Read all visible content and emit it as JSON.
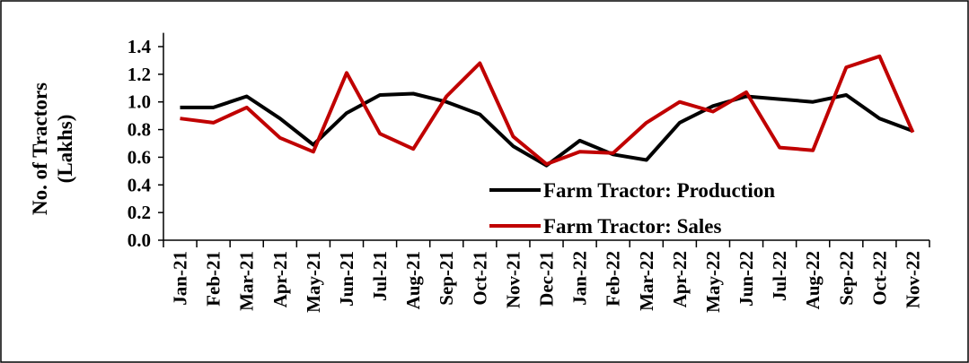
{
  "chart_data": {
    "type": "line",
    "y_label": [
      "No. of Tractors",
      "(Lakhs)"
    ],
    "categories": [
      "Jan-21",
      "Feb-21",
      "Mar-21",
      "Apr-21",
      "May-21",
      "Jun-21",
      "Jul-21",
      "Aug-21",
      "Sep-21",
      "Oct-21",
      "Nov-21",
      "Dec-21",
      "Jan-22",
      "Feb-22",
      "Mar-22",
      "Apr-22",
      "May-22",
      "Jun-22",
      "Jul-22",
      "Aug-22",
      "Sep-22",
      "Oct-22",
      "Nov-22"
    ],
    "series": [
      {
        "name": "Farm Tractor: Production",
        "color": "#000000",
        "values": [
          0.96,
          0.96,
          1.04,
          0.88,
          0.69,
          0.92,
          1.05,
          1.06,
          1.0,
          0.91,
          0.68,
          0.54,
          0.72,
          0.62,
          0.58,
          0.85,
          0.97,
          1.04,
          1.02,
          1.0,
          1.05,
          0.88,
          0.79
        ]
      },
      {
        "name": "Farm Tractor: Sales",
        "color": "#c00000",
        "values": [
          0.88,
          0.85,
          0.96,
          0.74,
          0.64,
          1.21,
          0.77,
          0.66,
          1.04,
          1.28,
          0.75,
          0.55,
          0.64,
          0.63,
          0.85,
          1.0,
          0.93,
          1.07,
          0.67,
          0.65,
          1.25,
          1.33,
          0.78
        ]
      }
    ],
    "ylim": [
      0,
      1.5
    ],
    "yticks": [
      {
        "value": 0,
        "label": "0.0"
      },
      0.2,
      0.4,
      0.6,
      0.8,
      {
        "value": 1,
        "label": "1.0"
      },
      1.2,
      1.4
    ],
    "grid": false
  }
}
